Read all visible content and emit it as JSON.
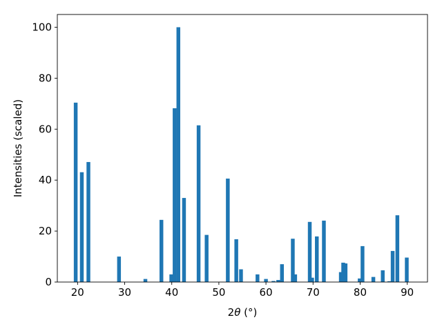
{
  "chart_data": {
    "type": "bar",
    "xlabel": "2θ (°)",
    "xlabel_main": "2",
    "xlabel_theta": "θ",
    "xlabel_unit": " (°)",
    "ylabel": "Intensities (scaled)",
    "xlim": [
      15.7,
      94.3
    ],
    "ylim": [
      0,
      105
    ],
    "grid": false,
    "bar_color": "#1f77b4",
    "bar_width": 0.8,
    "x_ticks": [
      "20",
      "30",
      "40",
      "50",
      "60",
      "70",
      "80",
      "90"
    ],
    "y_ticks": [
      "0",
      "20",
      "40",
      "60",
      "80",
      "100"
    ],
    "x": [
      19.6,
      20.9,
      22.3,
      28.8,
      34.4,
      37.8,
      39.9,
      40.6,
      41.4,
      42.6,
      45.7,
      47.4,
      51.9,
      53.7,
      54.7,
      58.2,
      60.0,
      61.6,
      62.6,
      63.4,
      65.7,
      66.2,
      69.3,
      69.8,
      70.8,
      72.3,
      75.9,
      76.4,
      76.9,
      79.9,
      80.5,
      82.8,
      84.8,
      86.2,
      86.9,
      87.9,
      89.9
    ],
    "values": [
      70.4,
      43.1,
      47.1,
      10.0,
      1.2,
      24.4,
      3.0,
      68.2,
      100.0,
      33.0,
      61.5,
      18.5,
      40.6,
      16.8,
      5.0,
      3.0,
      1.2,
      0.4,
      0.8,
      7.0,
      17.0,
      3.0,
      23.6,
      1.7,
      17.9,
      24.1,
      3.9,
      7.6,
      7.3,
      1.4,
      14.1,
      2.0,
      4.6,
      0.3,
      12.2,
      26.2,
      9.6
    ]
  }
}
